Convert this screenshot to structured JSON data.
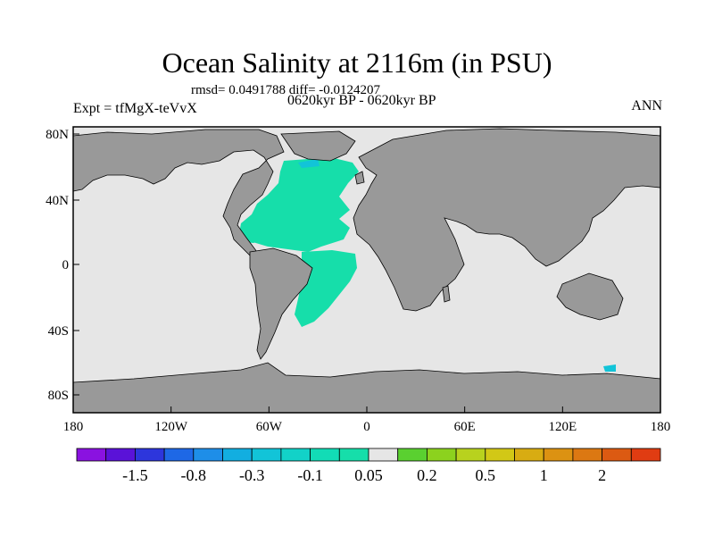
{
  "title": "Ocean Salinity at 2116m (in PSU)",
  "stats_line": "rmsd= 0.0491788 diff= -0.0124207",
  "experiment": "Expt = tfMgX-teVvX",
  "period": "0620kyr BP - 0620kyr BP",
  "season": "ANN",
  "lon_ticks": [
    "180",
    "120W",
    "60W",
    "0",
    "60E",
    "120E",
    "180"
  ],
  "lat_ticks": [
    "80N",
    "40N",
    "0",
    "40S",
    "80S"
  ],
  "colorbar": {
    "colors": [
      "#8a12e0",
      "#5a12d8",
      "#2d36dc",
      "#1e68e6",
      "#1e8ee8",
      "#12aee0",
      "#12c4d8",
      "#12d2c8",
      "#12dcb6",
      "#16deaa",
      "#e6e6e6",
      "#5ad030",
      "#8cd21e",
      "#b8d21e",
      "#d2c816",
      "#d8ac12",
      "#dc9212",
      "#dc7812",
      "#dc5a12",
      "#e03c12"
    ],
    "labels": [
      "-1.5",
      "-0.8",
      "-0.3",
      "-0.1",
      "0.05",
      "0.2",
      "0.5",
      "1",
      "2"
    ],
    "ocean_color": "#e6e6e6",
    "land_color": "#999999",
    "positive_anomaly_color": "#16deaa",
    "negative_anomaly_color": "#12c4d8",
    "hot_anomaly_color": "#d2c816"
  }
}
